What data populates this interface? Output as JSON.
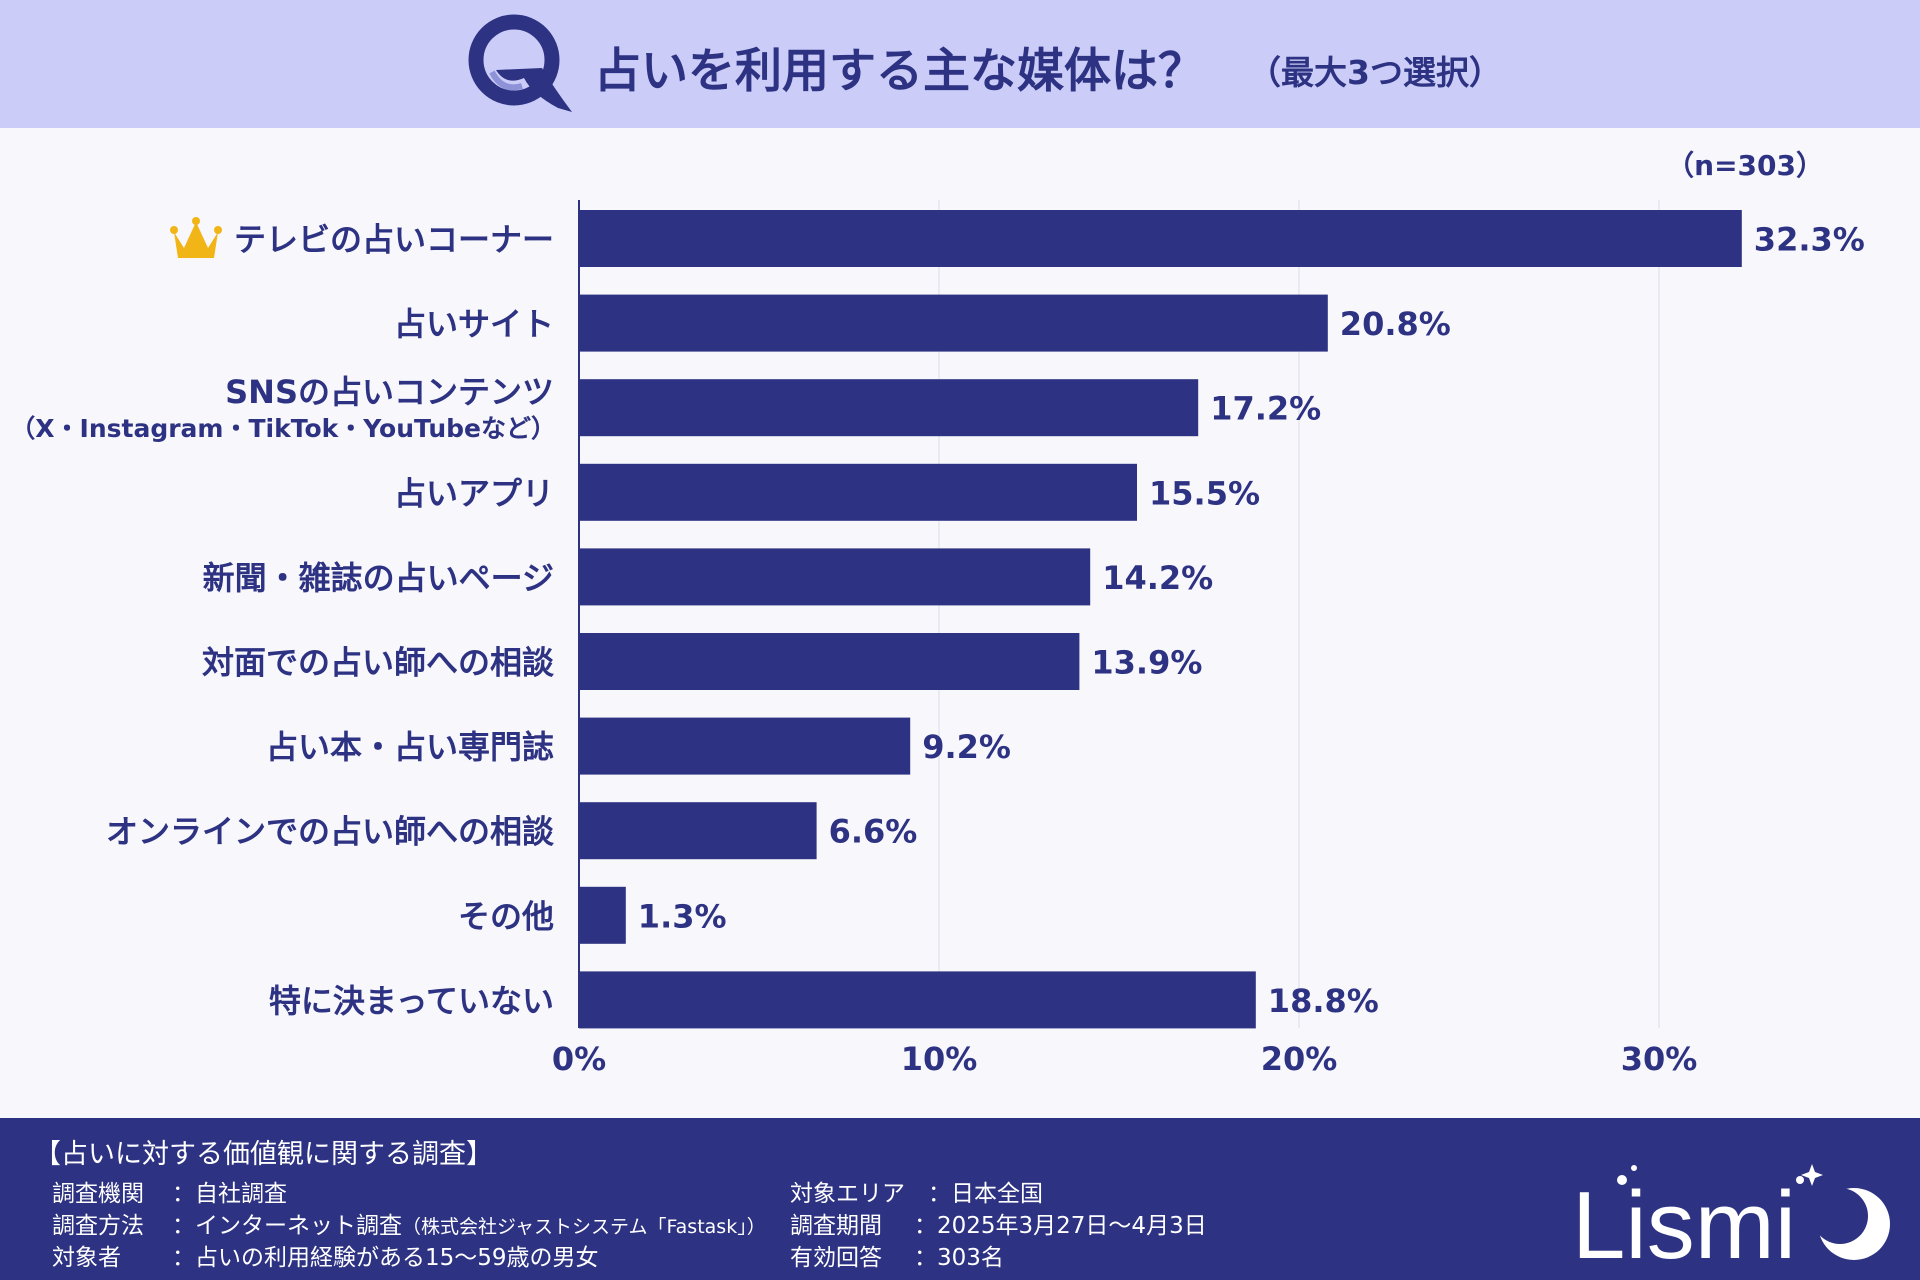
{
  "header": {
    "q_mark": "Q",
    "title": "占いを利用する主な媒体は？",
    "subtitle": "（最大3つ選択）"
  },
  "chart_data": {
    "type": "bar",
    "orientation": "horizontal",
    "sample_size_label": "（n=303）",
    "categories": [
      "テレビの占いコーナー",
      "占いサイト",
      "SNSの占いコンテンツ",
      "占いアプリ",
      "新聞・雑誌の占いページ",
      "対面での占い師への相談",
      "占い本・占い専門誌",
      "オンラインでの占い師への相談",
      "その他",
      "特に決まっていない"
    ],
    "category_sublabels": [
      "",
      "",
      "（X・Instagram・TikTok・YouTubeなど）",
      "",
      "",
      "",
      "",
      "",
      "",
      ""
    ],
    "values": [
      32.3,
      20.8,
      17.2,
      15.5,
      14.2,
      13.9,
      9.2,
      6.6,
      1.3,
      18.8
    ],
    "value_labels": [
      "32.3%",
      "20.8%",
      "17.2%",
      "15.5%",
      "14.2%",
      "13.9%",
      "9.2%",
      "6.6%",
      "1.3%",
      "18.8%"
    ],
    "xlim": [
      0,
      35
    ],
    "xticks": [
      0,
      10,
      20,
      30
    ],
    "xtick_labels": [
      "0%",
      "10%",
      "20%",
      "30%"
    ],
    "grid": true,
    "top_item_icon": "crown-icon",
    "bar_color": "#2d3282",
    "title": "",
    "xlabel": "",
    "ylabel": ""
  },
  "footer": {
    "survey_title": "【占いに対する価値観に関する調査】",
    "left_rows": [
      {
        "key": "調査機関",
        "value": "：自社調査",
        "note": ""
      },
      {
        "key": "調査方法",
        "value": "：インターネット調査",
        "note": "（株式会社ジャストシステム「Fastask」）"
      },
      {
        "key": "対象者",
        "value": "：占いの利用経験がある15〜59歳の男女",
        "note": ""
      }
    ],
    "right_rows": [
      {
        "key": "対象エリア",
        "value": "：日本全国"
      },
      {
        "key": "調査期間",
        "value": "：2025年3月27日〜4月3日"
      },
      {
        "key": "有効回答",
        "value": "：303名"
      }
    ],
    "brand": "Lismi"
  },
  "colors": {
    "header_bg": "#cbcdf8",
    "footer_bg": "#2d3282",
    "accent": "#2d3282",
    "crown": "#f2b517"
  }
}
